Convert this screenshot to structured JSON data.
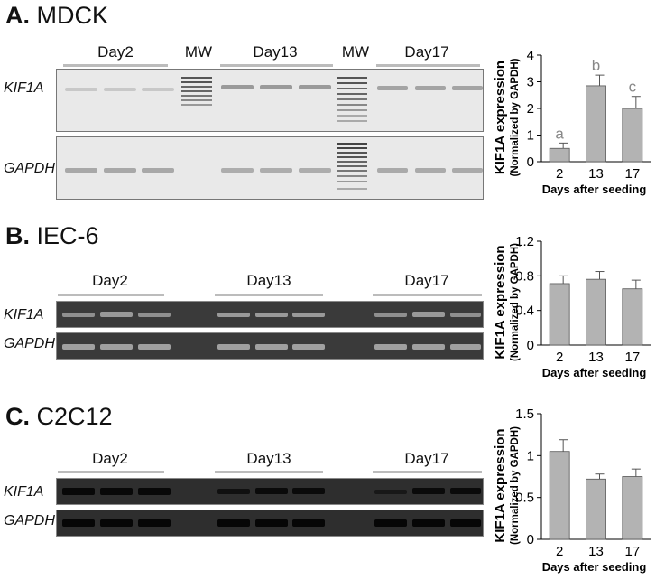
{
  "panels": [
    {
      "id": "mdck",
      "letter": "A.",
      "cell_line": "MDCK",
      "headers": [
        "Day2",
        "MW",
        "Day13",
        "MW",
        "Day17"
      ],
      "gel_labels": [
        "KIF1A",
        "GAPDH"
      ],
      "chart_data": {
        "type": "bar",
        "categories": [
          "2",
          "13",
          "17"
        ],
        "values": [
          0.5,
          2.85,
          2.0
        ],
        "errors": [
          0.2,
          0.4,
          0.45
        ],
        "letters": [
          "a",
          "b",
          "c"
        ],
        "ylim": [
          0,
          4
        ],
        "yticks": [
          0,
          1,
          2,
          3,
          4
        ],
        "ylabel_main": "KIF1A expression",
        "ylabel_sub": "(Normalized by GAPDH)",
        "xlabel": "Days after seeding",
        "bar_color": "#b3b3b3"
      }
    },
    {
      "id": "iec6",
      "letter": "B.",
      "cell_line": "IEC-6",
      "headers": [
        "Day2",
        "Day13",
        "Day17"
      ],
      "gel_labels": [
        "KIF1A",
        "GAPDH"
      ],
      "chart_data": {
        "type": "bar",
        "categories": [
          "2",
          "13",
          "17"
        ],
        "values": [
          0.71,
          0.76,
          0.65
        ],
        "errors": [
          0.09,
          0.09,
          0.1
        ],
        "ylim": [
          0,
          1.2
        ],
        "yticks": [
          0,
          0.4,
          0.8,
          1.2
        ],
        "ytick_labels": [
          "0",
          "0.4",
          "0.8",
          "1.2"
        ],
        "ylabel_main": "KIF1A expression",
        "ylabel_sub": "(Normalized by GAPDH)",
        "xlabel": "Days after seeding",
        "bar_color": "#b3b3b3"
      }
    },
    {
      "id": "c2c12",
      "letter": "C.",
      "cell_line": "C2C12",
      "headers": [
        "Day2",
        "Day13",
        "Day17"
      ],
      "gel_labels": [
        "KIF1A",
        "GAPDH"
      ],
      "chart_data": {
        "type": "bar",
        "categories": [
          "2",
          "13",
          "17"
        ],
        "values": [
          1.05,
          0.72,
          0.75
        ],
        "errors": [
          0.14,
          0.06,
          0.09
        ],
        "ylim": [
          0,
          1.5
        ],
        "yticks": [
          0,
          0.5,
          1,
          1.5
        ],
        "ytick_labels": [
          "0",
          "0.5",
          "1",
          "1.5"
        ],
        "ylabel_main": "KIF1A expression",
        "ylabel_sub": "(Normalized by GAPDH)",
        "xlabel": "Days after seeding",
        "bar_color": "#b3b3b3"
      }
    }
  ]
}
